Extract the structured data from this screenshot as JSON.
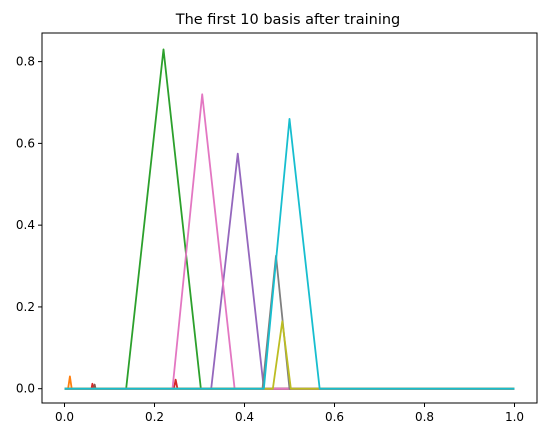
{
  "chart_data": {
    "type": "line",
    "title": "The first 10 basis after training",
    "xlabel": "",
    "ylabel": "",
    "xlim": [
      -0.05,
      1.05
    ],
    "ylim": [
      -0.035,
      0.87
    ],
    "xticks": [
      "0.0",
      "0.2",
      "0.4",
      "0.6",
      "0.8",
      "1.0"
    ],
    "xtick_values": [
      0.0,
      0.2,
      0.4,
      0.6,
      0.8,
      1.0
    ],
    "yticks": [
      "0.0",
      "0.2",
      "0.4",
      "0.6",
      "0.8"
    ],
    "ytick_values": [
      0.0,
      0.2,
      0.4,
      0.6,
      0.8
    ],
    "grid": false,
    "legend": "none",
    "series": [
      {
        "color": "#1f77b4",
        "x": [
          0.0,
          1.0
        ],
        "y": [
          0.0,
          0.0
        ]
      },
      {
        "color": "#ff7f0e",
        "x": [
          0.0,
          0.008,
          0.012,
          0.016,
          1.0
        ],
        "y": [
          0.0,
          0.0,
          0.03,
          0.0,
          0.0
        ]
      },
      {
        "color": "#2ca02c",
        "x": [
          0.0,
          0.137,
          0.22,
          0.303,
          1.0
        ],
        "y": [
          0.0,
          0.0,
          0.83,
          0.0,
          0.0
        ]
      },
      {
        "color": "#d62728",
        "x": [
          0.0,
          0.06,
          0.062,
          0.064,
          0.243,
          0.247,
          0.251,
          1.0
        ],
        "y": [
          0.0,
          0.0,
          0.012,
          0.0,
          0.0,
          0.022,
          0.0,
          0.0
        ]
      },
      {
        "color": "#9467bd",
        "x": [
          0.0,
          0.326,
          0.385,
          0.443,
          1.0
        ],
        "y": [
          0.0,
          0.0,
          0.575,
          0.0,
          0.0
        ]
      },
      {
        "color": "#8c564b",
        "x": [
          0.0,
          0.065,
          0.067,
          0.069,
          1.0
        ],
        "y": [
          0.0,
          0.0,
          0.01,
          0.0,
          0.0
        ]
      },
      {
        "color": "#e377c2",
        "x": [
          0.0,
          0.24,
          0.306,
          0.378,
          1.0
        ],
        "y": [
          0.0,
          0.0,
          0.72,
          0.0,
          0.0
        ]
      },
      {
        "color": "#7f7f7f",
        "x": [
          0.0,
          0.44,
          0.47,
          0.5,
          1.0
        ],
        "y": [
          0.0,
          0.0,
          0.325,
          0.0,
          0.0
        ]
      },
      {
        "color": "#bcbd22",
        "x": [
          0.0,
          0.463,
          0.484,
          0.503,
          1.0
        ],
        "y": [
          0.0,
          0.0,
          0.165,
          0.0,
          0.0
        ]
      },
      {
        "color": "#17becf",
        "x": [
          0.0,
          0.443,
          0.5,
          0.567,
          1.0
        ],
        "y": [
          0.0,
          0.0,
          0.66,
          0.0,
          0.0
        ]
      }
    ]
  }
}
